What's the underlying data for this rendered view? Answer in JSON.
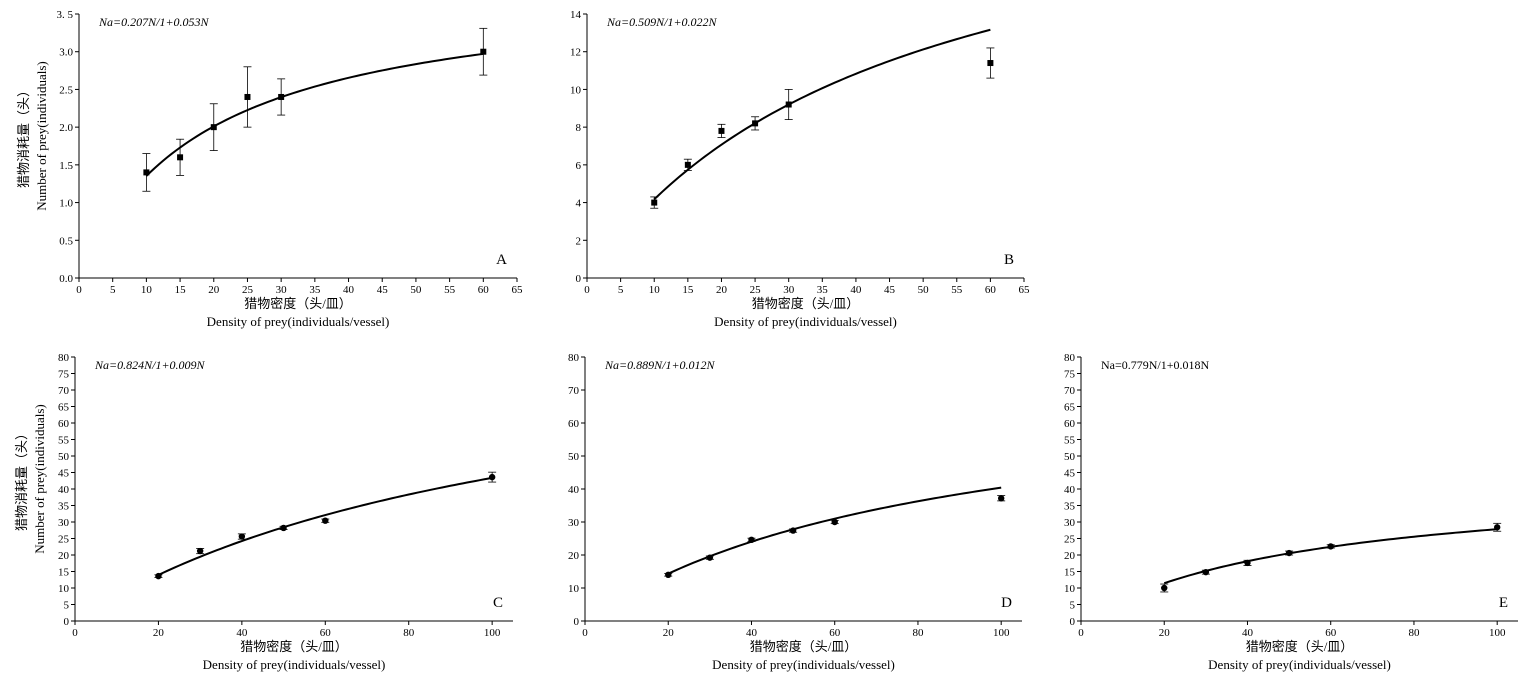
{
  "chart_data": [
    {
      "type": "scatter",
      "panel_label": "A",
      "equation": "Na=0.207N/1+0.053N",
      "xlabel": [
        "猎物密度（头/皿）",
        "Density of prey(individuals/vessel)"
      ],
      "ylabel": [
        "猎物消耗量（头）",
        "Number of prey(individuals)"
      ],
      "xlim": [
        0,
        65
      ],
      "ylim": [
        0,
        3.5
      ],
      "xticks": [
        0,
        5,
        10,
        15,
        20,
        25,
        30,
        35,
        40,
        45,
        50,
        55,
        60,
        65
      ],
      "xtick_labels": [
        "0",
        "5",
        "10",
        "15",
        "20",
        "25",
        "30",
        "35",
        "40",
        "45",
        "50",
        "55",
        "60",
        "65"
      ],
      "yticks": [
        0,
        0.5,
        1.0,
        1.5,
        2.0,
        2.5,
        3.0,
        3.5
      ],
      "ytick_labels": [
        "0.0",
        "0.5",
        "1.0",
        "1.5",
        "2.0",
        "2.5",
        "3.0",
        "3. 5"
      ],
      "marker": "square",
      "points": [
        {
          "x": 10,
          "y": 1.4,
          "err": 0.25
        },
        {
          "x": 15,
          "y": 1.6,
          "err": 0.24
        },
        {
          "x": 20,
          "y": 2.0,
          "err": 0.31
        },
        {
          "x": 25,
          "y": 2.4,
          "err": 0.4
        },
        {
          "x": 30,
          "y": 2.4,
          "err": 0.24
        },
        {
          "x": 60,
          "y": 3.0,
          "err": 0.31
        }
      ],
      "fit": {
        "a": 0.207,
        "b": 0.053,
        "x_range": [
          10,
          60
        ]
      }
    },
    {
      "type": "scatter",
      "panel_label": "B",
      "equation": "Na=0.509N/1+0.022N",
      "xlabel": [
        "猎物密度（头/皿）",
        "Density of prey(individuals/vessel)"
      ],
      "ylabel": [],
      "xlim": [
        0,
        65
      ],
      "ylim": [
        0,
        14
      ],
      "xticks": [
        0,
        5,
        10,
        15,
        20,
        25,
        30,
        35,
        40,
        45,
        50,
        55,
        60,
        65
      ],
      "xtick_labels": [
        "0",
        "5",
        "10",
        "15",
        "20",
        "25",
        "30",
        "35",
        "40",
        "45",
        "50",
        "55",
        "60",
        "65"
      ],
      "yticks": [
        0,
        2,
        4,
        6,
        8,
        10,
        12,
        14
      ],
      "ytick_labels": [
        "0",
        "2",
        "4",
        "6",
        "8",
        "10",
        "12",
        "14"
      ],
      "marker": "square",
      "points": [
        {
          "x": 10,
          "y": 4.0,
          "err": 0.3
        },
        {
          "x": 15,
          "y": 6.0,
          "err": 0.3
        },
        {
          "x": 20,
          "y": 7.8,
          "err": 0.35
        },
        {
          "x": 25,
          "y": 8.2,
          "err": 0.35
        },
        {
          "x": 30,
          "y": 9.2,
          "err": 0.8
        },
        {
          "x": 60,
          "y": 11.4,
          "err": 0.8
        }
      ],
      "fit": {
        "a": 0.509,
        "b": 0.022,
        "x_range": [
          10,
          60
        ]
      }
    },
    {
      "type": "scatter",
      "panel_label": "C",
      "equation": "Na=0.824N/1+0.009N",
      "xlabel": [
        "猎物密度（头/皿）",
        "Density of prey(individuals/vessel)"
      ],
      "ylabel": [
        "猎物消耗量（头）",
        "Number of prey(individuals)"
      ],
      "xlim": [
        0,
        105
      ],
      "ylim": [
        0,
        80
      ],
      "xticks": [
        0,
        20,
        40,
        60,
        80,
        100
      ],
      "xtick_labels": [
        "0",
        "20",
        "40",
        "60",
        "80",
        "100"
      ],
      "yticks": [
        0,
        5,
        10,
        15,
        20,
        25,
        30,
        35,
        40,
        45,
        50,
        55,
        60,
        65,
        70,
        75,
        80
      ],
      "ytick_labels": [
        "0",
        "5",
        "10",
        "15",
        "20",
        "25",
        "30",
        "35",
        "40",
        "45",
        "50",
        "55",
        "60",
        "65",
        "70",
        "75",
        "80"
      ],
      "marker": "circle",
      "points": [
        {
          "x": 20,
          "y": 13.6,
          "err": 0.4
        },
        {
          "x": 30,
          "y": 21.2,
          "err": 0.8
        },
        {
          "x": 40,
          "y": 25.6,
          "err": 0.8
        },
        {
          "x": 50,
          "y": 28.2,
          "err": 0.5
        },
        {
          "x": 60,
          "y": 30.4,
          "err": 0.5
        },
        {
          "x": 100,
          "y": 43.6,
          "err": 1.5
        }
      ],
      "fit": {
        "a": 0.824,
        "b": 0.009,
        "x_range": [
          20,
          100
        ]
      }
    },
    {
      "type": "scatter",
      "panel_label": "D",
      "equation": "Na=0.889N/1+0.012N",
      "xlabel": [
        "猎物密度（头/皿）",
        "Density of prey(individuals/vessel)"
      ],
      "ylabel": [],
      "xlim": [
        0,
        105
      ],
      "ylim": [
        0,
        80
      ],
      "xticks": [
        0,
        20,
        40,
        60,
        80,
        100
      ],
      "xtick_labels": [
        "0",
        "20",
        "40",
        "60",
        "80",
        "100"
      ],
      "yticks": [
        0,
        10,
        20,
        30,
        40,
        50,
        60,
        70,
        80
      ],
      "ytick_labels": [
        "0",
        "10",
        "20",
        "30",
        "40",
        "50",
        "60",
        "70",
        "80"
      ],
      "marker": "circle",
      "points": [
        {
          "x": 20,
          "y": 14.0,
          "err": 0.4
        },
        {
          "x": 30,
          "y": 19.2,
          "err": 0.5
        },
        {
          "x": 40,
          "y": 24.6,
          "err": 0.5
        },
        {
          "x": 50,
          "y": 27.4,
          "err": 0.5
        },
        {
          "x": 60,
          "y": 30.0,
          "err": 0.5
        },
        {
          "x": 100,
          "y": 37.2,
          "err": 0.8
        }
      ],
      "fit": {
        "a": 0.889,
        "b": 0.012,
        "x_range": [
          20,
          100
        ]
      }
    },
    {
      "type": "scatter",
      "panel_label": "E",
      "equation": "Na=0.779N/1+0.018N",
      "xlabel": [
        "猎物密度（头/皿）",
        "Density of prey(individuals/vessel)"
      ],
      "ylabel": [],
      "xlim": [
        0,
        105
      ],
      "ylim": [
        0,
        80
      ],
      "xticks": [
        0,
        20,
        40,
        60,
        80,
        100
      ],
      "xtick_labels": [
        "0",
        "20",
        "40",
        "60",
        "80",
        "100"
      ],
      "yticks": [
        0,
        5,
        10,
        15,
        20,
        25,
        30,
        35,
        40,
        45,
        50,
        55,
        60,
        65,
        70,
        75,
        80
      ],
      "ytick_labels": [
        "0",
        "5",
        "10",
        "15",
        "20",
        "25",
        "30",
        "35",
        "40",
        "45",
        "50",
        "55",
        "60",
        "65",
        "70",
        "75",
        "80"
      ],
      "marker": "circle",
      "points": [
        {
          "x": 20,
          "y": 10.0,
          "err": 1.2
        },
        {
          "x": 30,
          "y": 14.8,
          "err": 0.6
        },
        {
          "x": 40,
          "y": 17.6,
          "err": 0.8
        },
        {
          "x": 50,
          "y": 20.6,
          "err": 0.6
        },
        {
          "x": 60,
          "y": 22.6,
          "err": 0.5
        },
        {
          "x": 100,
          "y": 28.4,
          "err": 1.2
        }
      ],
      "fit": {
        "a": 0.779,
        "b": 0.018,
        "x_range": [
          20,
          100
        ]
      }
    }
  ],
  "colors": {
    "ink": "#000000",
    "background": "#ffffff"
  }
}
